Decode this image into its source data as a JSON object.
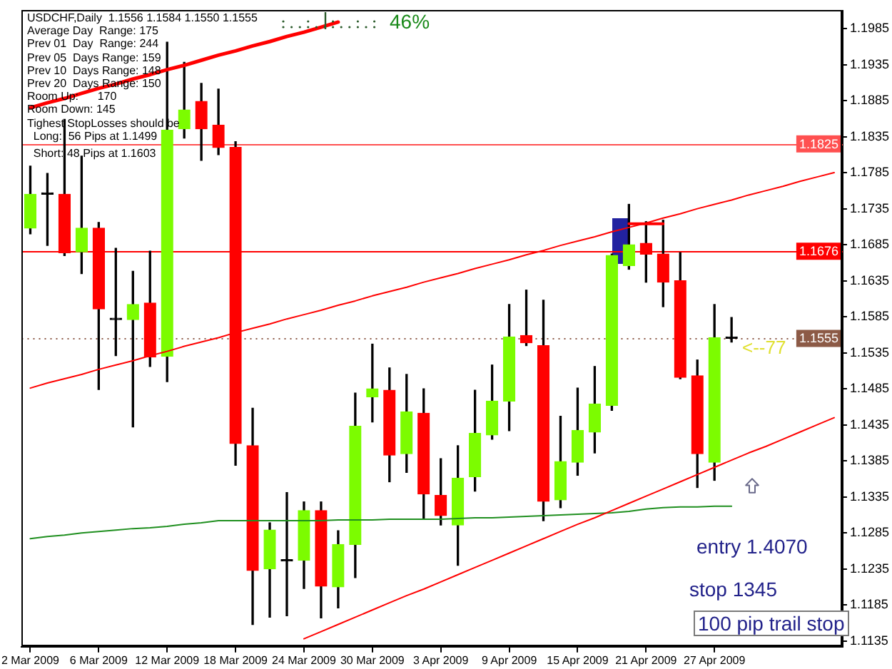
{
  "chart_data": {
    "type": "candlestick",
    "title": "USDCHF,Daily  1.1556 1.1584 1.1550 1.1555",
    "categories": [
      "2 Mar 2009",
      null,
      null,
      null,
      "6 Mar 2009",
      null,
      null,
      null,
      "12 Mar 2009",
      null,
      null,
      null,
      "18 Mar 2009",
      null,
      null,
      null,
      "24 Mar 2009",
      null,
      null,
      null,
      "30 Mar 2009",
      null,
      null,
      null,
      "3 Apr 2009",
      null,
      null,
      null,
      "9 Apr 2009",
      null,
      null,
      null,
      "15 Apr 2009",
      null,
      null,
      null,
      "21 Apr 2009",
      null,
      null,
      null,
      "27 Apr 2009",
      null,
      null,
      null,
      null,
      null,
      null,
      null
    ],
    "ohlc": [
      [
        1.1708,
        1.1794,
        1.17,
        1.1755
      ],
      [
        1.1755,
        1.1784,
        1.1684,
        1.1755
      ],
      [
        1.1755,
        1.1859,
        1.167,
        1.1674
      ],
      [
        1.1675,
        1.1808,
        1.1645,
        1.1708
      ],
      [
        1.1708,
        1.1716,
        1.1484,
        1.1596
      ],
      [
        1.1581,
        1.168,
        1.1531,
        1.1581
      ],
      [
        1.1581,
        1.1648,
        1.1432,
        1.1602
      ],
      [
        1.1604,
        1.1676,
        1.1516,
        1.1529
      ],
      [
        1.153,
        1.1966,
        1.1495,
        1.1844
      ],
      [
        1.1846,
        1.1938,
        1.1833,
        1.1872
      ],
      [
        1.1884,
        1.1909,
        1.1802,
        1.1846
      ],
      [
        1.1851,
        1.1901,
        1.181,
        1.182
      ],
      [
        1.182,
        1.1828,
        1.1379,
        1.1409
      ],
      [
        1.1406,
        1.1458,
        1.1158,
        1.1233
      ],
      [
        1.1235,
        1.1299,
        1.1168,
        1.1289
      ],
      [
        1.1246,
        1.1341,
        1.117,
        1.1246
      ],
      [
        1.1247,
        1.1328,
        1.1208,
        1.1316
      ],
      [
        1.1316,
        1.1328,
        1.1167,
        1.1211
      ],
      [
        1.121,
        1.1288,
        1.1181,
        1.1269
      ],
      [
        1.1269,
        1.1479,
        1.1223,
        1.1433
      ],
      [
        1.1474,
        1.1547,
        1.1439,
        1.1485
      ],
      [
        1.1483,
        1.1514,
        1.1356,
        1.1393
      ],
      [
        1.1395,
        1.1505,
        1.1369,
        1.1453
      ],
      [
        1.1451,
        1.1485,
        1.1304,
        1.1339
      ],
      [
        1.1337,
        1.1388,
        1.1296,
        1.1309
      ],
      [
        1.1296,
        1.1406,
        1.124,
        1.1361
      ],
      [
        1.1363,
        1.1483,
        1.1343,
        1.1423
      ],
      [
        1.1421,
        1.1518,
        1.1415,
        1.1468
      ],
      [
        1.1468,
        1.1602,
        1.1427,
        1.1557
      ],
      [
        1.1559,
        1.1622,
        1.1545,
        1.1549
      ],
      [
        1.1545,
        1.1608,
        1.1302,
        1.1329
      ],
      [
        1.1331,
        1.1447,
        1.132,
        1.1384
      ],
      [
        1.1383,
        1.1486,
        1.1365,
        1.1427
      ],
      [
        1.1425,
        1.1516,
        1.1396,
        1.1464
      ],
      [
        1.1462,
        1.1672,
        1.1455,
        1.167
      ],
      [
        1.1656,
        1.1741,
        1.1651,
        1.1685
      ],
      [
        1.1687,
        1.1717,
        1.1633,
        1.1672
      ],
      [
        1.1672,
        1.1719,
        1.1599,
        1.1633
      ],
      [
        1.1635,
        1.1674,
        1.1499,
        1.1501
      ],
      [
        1.1503,
        1.1525,
        1.1348,
        1.1395
      ],
      [
        1.1383,
        1.1602,
        1.1358,
        1.1556
      ],
      [
        1.1556,
        1.1584,
        1.155,
        1.1555
      ],
      null,
      null,
      null,
      null,
      null,
      null
    ],
    "colors": [
      "#7cfc00",
      "#000000",
      "#ff0000",
      "#7cfc00",
      "#ff0000",
      "#000000",
      "#7cfc00",
      "#ff0000",
      "#7cfc00",
      "#7cfc00",
      "#ff0000",
      "#ff0000",
      "#ff0000",
      "#ff0000",
      "#7cfc00",
      "#000000",
      "#7cfc00",
      "#ff0000",
      "#7cfc00",
      "#7cfc00",
      "#7cfc00",
      "#ff0000",
      "#7cfc00",
      "#ff0000",
      "#ff0000",
      "#7cfc00",
      "#7cfc00",
      "#7cfc00",
      "#7cfc00",
      "#ff0000",
      "#ff0000",
      "#7cfc00",
      "#7cfc00",
      "#7cfc00",
      "#7cfc00",
      "#7cfc00",
      "#ff0000",
      "#ff0000",
      "#ff0000",
      "#ff0000",
      "#7cfc00",
      "#000000",
      null,
      null,
      null,
      null,
      null,
      null
    ],
    "color": "#000000",
    "series": [
      {
        "type": "line",
        "color": "#1f8f1f",
        "values": [
          1.1277,
          1.128,
          1.1282,
          1.1285,
          1.1287,
          1.1289,
          1.1291,
          1.1292,
          1.1294,
          1.1297,
          1.1299,
          1.1302,
          1.1302,
          1.1302,
          1.1302,
          1.1302,
          1.1302,
          1.1302,
          1.1303,
          1.1303,
          1.1303,
          1.1304,
          1.1304,
          1.1304,
          1.1304,
          1.1305,
          1.1306,
          1.1306,
          1.1307,
          1.1308,
          1.1309,
          1.131,
          1.1311,
          1.1312,
          1.1313,
          1.1315,
          1.1318,
          1.132,
          1.1321,
          1.1321,
          1.1322,
          1.1322,
          null,
          null,
          null,
          null,
          null,
          null
        ]
      },
      {
        "type": "line",
        "color": "#ff0000",
        "values": [
          1.1875,
          1.1882,
          1.1888,
          1.1895,
          1.1902,
          1.1908,
          1.1915,
          1.1921,
          1.1928,
          1.1934,
          1.1941,
          1.1948,
          1.1954,
          1.1961,
          1.1967,
          1.1974,
          1.198,
          1.1987,
          1.1994,
          null,
          null,
          null,
          null,
          null,
          null,
          null,
          null,
          null,
          null,
          null,
          null,
          null,
          null,
          null,
          null,
          null,
          null,
          null,
          null,
          null,
          null,
          null,
          null,
          null,
          null,
          null,
          null,
          null
        ]
      },
      {
        "type": "line",
        "color": "#ff0000",
        "values": [
          1.1486,
          1.1493,
          1.1499,
          1.1505,
          1.1512,
          1.1518,
          1.1524,
          1.1531,
          1.1537,
          1.1544,
          1.155,
          1.1556,
          1.1563,
          1.1569,
          1.1575,
          1.1582,
          1.1588,
          1.1594,
          1.1601,
          1.1607,
          1.1614,
          1.162,
          1.1626,
          1.1633,
          1.1639,
          1.1645,
          1.1652,
          1.1658,
          1.1664,
          1.1671,
          1.1677,
          1.1684,
          1.169,
          1.1696,
          1.1703,
          1.1709,
          1.1715,
          1.1722,
          1.1728,
          1.1735,
          1.1741,
          1.1747,
          1.1754,
          1.176,
          1.1766,
          1.1773,
          1.1779,
          1.1785
        ]
      },
      {
        "type": "line",
        "color": "#ff0000",
        "values": [
          null,
          null,
          null,
          null,
          null,
          null,
          null,
          null,
          null,
          null,
          null,
          null,
          null,
          null,
          null,
          null,
          1.1138,
          1.1148,
          1.1158,
          1.1168,
          1.1178,
          1.1188,
          1.1198,
          1.1207,
          1.1217,
          1.1227,
          1.1237,
          1.1247,
          1.1257,
          1.1267,
          1.1277,
          1.1287,
          1.1297,
          1.1306,
          1.1316,
          1.1326,
          1.1336,
          1.1346,
          1.1356,
          1.1366,
          1.1376,
          1.1386,
          1.1396,
          1.1405,
          1.1415,
          1.1425,
          1.1435,
          1.1445
        ]
      },
      {
        "type": "line",
        "color": "#ff0000",
        "values": [
          null,
          null,
          null,
          null,
          null,
          null,
          null,
          null,
          null,
          null,
          null,
          null,
          null,
          null,
          null,
          null,
          null,
          null,
          null,
          null,
          null,
          null,
          null,
          null,
          null,
          null,
          null,
          null,
          null,
          null,
          null,
          null,
          null,
          null,
          null,
          1.1714,
          1.1714,
          1.1714,
          null,
          null,
          null,
          null,
          null,
          null,
          null,
          null,
          null,
          null
        ]
      }
    ],
    "ylim": [
      1.1127,
      1.201
    ],
    "yticks": [
      1.1985,
      1.1935,
      1.1885,
      1.1835,
      1.1785,
      1.1735,
      1.1685,
      1.1635,
      1.1585,
      1.1535,
      1.1485,
      1.1435,
      1.1385,
      1.1335,
      1.1285,
      1.1235,
      1.1185,
      1.1135
    ],
    "ref_lines": [
      {
        "axis": "y",
        "value": 1.1825,
        "label": "1.1825",
        "color": "#ff5050"
      },
      {
        "axis": "y",
        "value": 1.1676,
        "label": "1.1676",
        "color": "#ff0000"
      },
      {
        "axis": "y",
        "value": 1.1555,
        "label": "1.1555",
        "color": "#8c5a46",
        "line_style": "dotted"
      }
    ],
    "annotations": [
      "Average Day  Range: 175",
      "Prev 01  Day  Range: 244",
      "Prev 05  Days Range: 159",
      "Prev 10  Days Range: 148",
      "Prev 20  Days Range: 150",
      "Room Up:      170",
      "Room Down: 145",
      "Tighest StopLosses should be",
      "Long:  56 Pips at 1.1499",
      "Short: 48 Pips at 1.1603",
      "46%",
      "<--77",
      "entry 1.4070",
      "stop 1345",
      "100 pip trail stop"
    ]
  }
}
